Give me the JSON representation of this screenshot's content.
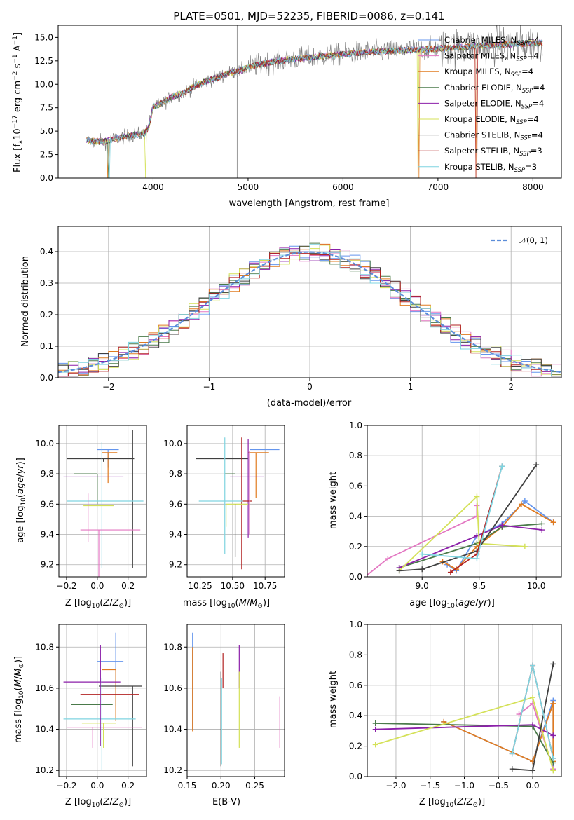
{
  "colors": {
    "Chabrier MILES": "#6495ed",
    "Salpeter MILES": "#e377c2",
    "Kroupa MILES": "#e07b20",
    "Chabrier ELODIE": "#4a7a4a",
    "Salpeter ELODIE": "#8b1fa9",
    "Kroupa ELODIE": "#d4e157",
    "Chabrier STELIB": "#404040",
    "Salpeter STELIB": "#b22222",
    "Kroupa STELIB": "#7fd4e0",
    "gaussian": "#5b8dd9"
  },
  "chart_data": [
    {
      "id": "spectrum",
      "type": "line",
      "title": "PLATE=0501, MJD=52235, FIBERID=0086, z=0.141",
      "xlabel": "wavelength [Angstrom, rest frame]",
      "ylabel": "Flux [f_λ 10^-17 erg cm^-2 s^-1 A^-1]",
      "xlim": [
        3000,
        8300
      ],
      "ylim": [
        0,
        16.3
      ],
      "xticks": [
        4000,
        5000,
        6000,
        7000,
        8000
      ],
      "yticks": [
        0.0,
        2.5,
        5.0,
        7.5,
        10.0,
        12.5,
        15.0
      ],
      "legend_position": "right",
      "legend": [
        {
          "name": "Chabrier MILES",
          "nssp": "4"
        },
        {
          "name": "Salpeter MILES",
          "nssp": "4"
        },
        {
          "name": "Kroupa MILES",
          "nssp": "4"
        },
        {
          "name": "Chabrier ELODIE",
          "nssp": "4"
        },
        {
          "name": "Salpeter ELODIE",
          "nssp": "4"
        },
        {
          "name": "Kroupa ELODIE",
          "nssp": "4"
        },
        {
          "name": "Chabrier STELIB",
          "nssp": "4"
        },
        {
          "name": "Salpeter STELIB",
          "nssp": "3"
        },
        {
          "name": "Kroupa STELIB",
          "nssp": "3"
        }
      ],
      "continuum": {
        "x": [
          3300,
          3400,
          3500,
          3600,
          3700,
          3800,
          3900,
          3950,
          4000,
          4100,
          4200,
          4300,
          4400,
          4500,
          4600,
          4700,
          4800,
          4900,
          5000,
          5200,
          5400,
          5600,
          5800,
          6000,
          6200,
          6400,
          6600,
          6800,
          7000,
          7200,
          7400,
          7600,
          7800,
          8000,
          8100
        ],
        "y": [
          4.0,
          3.9,
          3.9,
          4.2,
          4.4,
          4.6,
          4.7,
          5.3,
          7.6,
          8.0,
          8.7,
          9.0,
          9.6,
          10.1,
          10.5,
          10.8,
          11.2,
          11.4,
          11.8,
          12.3,
          12.6,
          12.8,
          13.0,
          13.2,
          13.4,
          13.5,
          13.6,
          13.7,
          13.8,
          13.9,
          14.1,
          14.2,
          14.3,
          14.4,
          14.4
        ]
      }
    },
    {
      "id": "residuals",
      "type": "step",
      "xlabel": "(data-model)/error",
      "ylabel": "Normed distribution",
      "xlim": [
        -2.5,
        2.5
      ],
      "ylim": [
        0,
        0.48
      ],
      "xticks": [
        -2,
        -1,
        0,
        1,
        2
      ],
      "yticks": [
        0.0,
        0.1,
        0.2,
        0.3,
        0.4
      ],
      "grid": true,
      "legend_position": "top-right",
      "gaussian_label": "𝒩(0, 1)",
      "bins": {
        "start": -2.5,
        "width": 0.1,
        "count": 50
      }
    },
    {
      "id": "age-vs-Z",
      "type": "errorbar",
      "xlabel": "Z [log10(Z/Z⊙)]",
      "ylabel": "age [log10(age/yr)]",
      "xlim": [
        -0.25,
        0.32
      ],
      "ylim": [
        9.12,
        10.12
      ],
      "xticks": [
        -0.2,
        0.0,
        0.2
      ],
      "yticks": [
        9.2,
        9.4,
        9.6,
        9.8,
        10.0
      ],
      "grid": true,
      "points": [
        {
          "model": "Chabrier MILES",
          "x": 0.07,
          "y": 9.96,
          "xerr": [
            0.07,
            0.07
          ],
          "yerr": [
            0.12,
            0.0
          ]
        },
        {
          "model": "Kroupa MILES",
          "x": 0.07,
          "y": 9.94,
          "xerr": [
            0.04,
            0.06
          ],
          "yerr": [
            0.2,
            0.0
          ]
        },
        {
          "model": "Chabrier STELIB",
          "x": 0.04,
          "y": 9.9,
          "xerr": [
            0.24,
            0.2
          ],
          "yerr": [
            0.02,
            0.0
          ]
        },
        {
          "model": "Chabrier STELIB",
          "x": 0.23,
          "y": 9.6,
          "xerr": [
            0.0,
            0.0
          ],
          "yerr": [
            0.42,
            0.49
          ]
        },
        {
          "model": "Chabrier ELODIE",
          "x": 0.0,
          "y": 9.8,
          "xerr": [
            0.15,
            0.0
          ],
          "yerr": [
            0.2,
            0.0
          ]
        },
        {
          "model": "Salpeter ELODIE",
          "x": 0.0,
          "y": 9.78,
          "xerr": [
            0.22,
            0.17
          ],
          "yerr": [
            0.0,
            0.0
          ]
        },
        {
          "model": "Kroupa STELIB",
          "x": 0.03,
          "y": 9.62,
          "xerr": [
            0.23,
            0.27
          ],
          "yerr": [
            0.44,
            0.39
          ]
        },
        {
          "model": "Kroupa ELODIE",
          "x": 0.02,
          "y": 9.59,
          "xerr": [
            0.11,
            0.09
          ],
          "yerr": [
            0.0,
            0.0
          ]
        },
        {
          "model": "Salpeter MILES",
          "x": 0.01,
          "y": 9.43,
          "xerr": [
            0.12,
            0.27
          ],
          "yerr": [
            0.5,
            0.0
          ]
        },
        {
          "model": "Salpeter MILES",
          "x": -0.06,
          "y": 9.55,
          "xerr": [
            0.0,
            0.0
          ],
          "yerr": [
            0.2,
            0.12
          ]
        },
        {
          "model": "Salpeter STELIB",
          "x": 0.0,
          "y": 9.62,
          "xerr": [
            0.0,
            0.0
          ],
          "yerr": [
            0.0,
            0.0
          ]
        }
      ]
    },
    {
      "id": "age-vs-mass",
      "type": "errorbar",
      "xlabel": "mass [log10(M/M⊙)]",
      "ylabel": "",
      "xlim": [
        10.15,
        10.9
      ],
      "ylim": [
        9.12,
        10.12
      ],
      "xticks": [
        10.25,
        10.5,
        10.75
      ],
      "yticks": [
        9.2,
        9.4,
        9.6,
        9.8,
        10.0
      ],
      "grid": true,
      "points": [
        {
          "model": "Chabrier MILES",
          "x": 10.73,
          "y": 9.96,
          "xerr": [
            0.1,
            0.13
          ],
          "yerr": [
            0.0,
            0.0
          ]
        },
        {
          "model": "Kroupa MILES",
          "x": 10.68,
          "y": 9.94,
          "xerr": [
            0.06,
            0.1
          ],
          "yerr": [
            0.3,
            0.0
          ]
        },
        {
          "model": "Chabrier STELIB",
          "x": 10.4,
          "y": 9.9,
          "xerr": [
            0.18,
            0.22
          ],
          "yerr": [
            0.0,
            0.0
          ]
        },
        {
          "model": "Chabrier ELODIE",
          "x": 10.52,
          "y": 9.8,
          "xerr": [
            0.08,
            0.0
          ],
          "yerr": [
            0.0,
            0.0
          ]
        },
        {
          "model": "Salpeter ELODIE",
          "x": 10.62,
          "y": 9.78,
          "xerr": [
            0.14,
            0.12
          ],
          "yerr": [
            0.4,
            0.25
          ]
        },
        {
          "model": "Salpeter STELIB",
          "x": 10.57,
          "y": 9.62,
          "xerr": [
            0.0,
            0.08
          ],
          "yerr": [
            0.45,
            0.42
          ]
        },
        {
          "model": "Kroupa STELIB",
          "x": 10.44,
          "y": 9.62,
          "xerr": [
            0.2,
            0.14
          ],
          "yerr": [
            0.35,
            0.42
          ]
        },
        {
          "model": "Kroupa ELODIE",
          "x": 10.45,
          "y": 9.6,
          "xerr": [
            0.0,
            0.17
          ],
          "yerr": [
            0.15,
            0.0
          ]
        },
        {
          "model": "Chabrier STELIB",
          "x": 10.52,
          "y": 9.6,
          "xerr": [
            0.0,
            0.0
          ],
          "yerr": [
            0.35,
            0.0
          ]
        },
        {
          "model": "Salpeter MILES",
          "x": 10.63,
          "y": 9.6,
          "xerr": [
            0.0,
            0.0
          ],
          "yerr": [
            0.2,
            0.35
          ]
        }
      ]
    },
    {
      "id": "massweight-vs-age",
      "type": "line",
      "xlabel": "age [log10(age/yr)]",
      "ylabel": "mass weight",
      "xlim": [
        8.52,
        10.22
      ],
      "ylim": [
        0,
        1.0
      ],
      "xticks": [
        9.0,
        9.5,
        10.0
      ],
      "yticks": [
        0.0,
        0.2,
        0.4,
        0.6,
        0.8,
        1.0
      ],
      "grid": true,
      "series": [
        {
          "model": "Chabrier MILES",
          "x": [
            9.22,
            9.3,
            9.48,
            9.7,
            9.9,
            10.15
          ],
          "y": [
            0.08,
            0.04,
            0.27,
            0.35,
            0.5,
            0.36
          ]
        },
        {
          "model": "Salpeter MILES",
          "x": [
            8.5,
            8.7,
            9.48,
            9.48
          ],
          "y": [
            0.0,
            0.12,
            0.4,
            0.47
          ]
        },
        {
          "model": "Kroupa MILES",
          "x": [
            9.18,
            9.3,
            9.48,
            9.7,
            9.87,
            10.15
          ],
          "y": [
            0.1,
            0.05,
            0.2,
            0.33,
            0.48,
            0.36
          ]
        },
        {
          "model": "Chabrier ELODIE",
          "x": [
            8.8,
            9.48,
            9.7,
            10.05
          ],
          "y": [
            0.06,
            0.22,
            0.33,
            0.35
          ]
        },
        {
          "model": "Salpeter ELODIE",
          "x": [
            8.8,
            9.48,
            9.7,
            10.05
          ],
          "y": [
            0.06,
            0.27,
            0.34,
            0.31
          ]
        },
        {
          "model": "Kroupa ELODIE",
          "x": [
            8.8,
            9.48,
            9.5,
            9.9
          ],
          "y": [
            0.04,
            0.53,
            0.22,
            0.2
          ]
        },
        {
          "model": "Chabrier STELIB",
          "x": [
            8.8,
            9.0,
            9.48,
            10.0
          ],
          "y": [
            0.04,
            0.05,
            0.17,
            0.74
          ]
        },
        {
          "model": "Salpeter STELIB",
          "x": [
            9.25,
            9.48,
            9.7
          ],
          "y": [
            0.03,
            0.15,
            0.73
          ]
        },
        {
          "model": "Kroupa STELIB",
          "x": [
            9.0,
            9.48,
            9.7
          ],
          "y": [
            0.15,
            0.12,
            0.73
          ]
        }
      ]
    },
    {
      "id": "mass-vs-Z",
      "type": "errorbar",
      "xlabel": "Z [log10(Z/Z⊙)]",
      "ylabel": "mass [log10(M/M⊙)]",
      "xlim": [
        -0.25,
        0.32
      ],
      "ylim": [
        10.17,
        10.91
      ],
      "xticks": [
        -0.2,
        0.0,
        0.2
      ],
      "yticks": [
        10.2,
        10.4,
        10.6,
        10.8
      ],
      "grid": true,
      "points": [
        {
          "model": "Chabrier MILES",
          "x": 0.12,
          "y": 10.73,
          "xerr": [
            0.12,
            0.05
          ],
          "yerr": [
            0.22,
            0.14
          ]
        },
        {
          "model": "Kroupa MILES",
          "x": 0.12,
          "y": 10.69,
          "xerr": [
            0.09,
            0.0
          ],
          "yerr": [
            0.25,
            0.0
          ]
        },
        {
          "model": "Chabrier STELIB",
          "x": 0.23,
          "y": 10.61,
          "xerr": [
            0.22,
            0.06
          ],
          "yerr": [
            0.39,
            0.0
          ]
        },
        {
          "model": "Salpeter ELODIE",
          "x": 0.02,
          "y": 10.63,
          "xerr": [
            0.24,
            0.13
          ],
          "yerr": [
            0.0,
            0.18
          ]
        },
        {
          "model": "Salpeter STELIB",
          "x": 0.02,
          "y": 10.57,
          "xerr": [
            0.13,
            0.25
          ],
          "yerr": [
            0.0,
            0.0
          ]
        },
        {
          "model": "Chabrier ELODIE",
          "x": 0.0,
          "y": 10.52,
          "xerr": [
            0.17,
            0.1
          ],
          "yerr": [
            0.0,
            0.0
          ]
        },
        {
          "model": "Kroupa STELIB",
          "x": 0.03,
          "y": 10.45,
          "xerr": [
            0.25,
            0.22
          ],
          "yerr": [
            0.25,
            0.2
          ]
        },
        {
          "model": "Kroupa ELODIE",
          "x": 0.04,
          "y": 10.43,
          "xerr": [
            0.14,
            0.08
          ],
          "yerr": [
            0.12,
            0.0
          ]
        },
        {
          "model": "Salpeter MILES",
          "x": -0.03,
          "y": 10.41,
          "xerr": [
            0.17,
            0.32
          ],
          "yerr": [
            0.1,
            0.0
          ]
        },
        {
          "model": "Salpeter ELODIE",
          "x": 0.02,
          "y": 10.45,
          "xerr": [
            0.0,
            0.0
          ],
          "yerr": [
            0.13,
            0.36
          ]
        }
      ]
    },
    {
      "id": "mass-vs-EBV",
      "type": "errorbar",
      "xlabel": "E(B-V)",
      "ylabel": "",
      "xlim": [
        0.15,
        0.294
      ],
      "ylim": [
        10.17,
        10.91
      ],
      "xticks": [
        0.15,
        0.2,
        0.25
      ],
      "yticks": [
        10.2,
        10.4,
        10.6,
        10.8
      ],
      "grid": true,
      "points": [
        {
          "model": "Chabrier MILES",
          "x": 0.158,
          "y": 10.6,
          "xerr": [
            0.0,
            0.0
          ],
          "yerr": [
            0.2,
            0.27
          ]
        },
        {
          "model": "Kroupa MILES",
          "x": 0.158,
          "y": 10.6,
          "xerr": [
            0.0,
            0.0
          ],
          "yerr": [
            0.21,
            0.2
          ]
        },
        {
          "model": "Chabrier STELIB",
          "x": 0.2,
          "y": 10.45,
          "xerr": [
            0.0,
            0.0
          ],
          "yerr": [
            0.23,
            0.23
          ]
        },
        {
          "model": "Salpeter STELIB",
          "x": 0.203,
          "y": 10.6,
          "xerr": [
            0.0,
            0.0
          ],
          "yerr": [
            0.0,
            0.17
          ]
        },
        {
          "model": "Kroupa STELIB",
          "x": 0.201,
          "y": 10.45,
          "xerr": [
            0.0,
            0.0
          ],
          "yerr": [
            0.22,
            0.2
          ]
        },
        {
          "model": "Salpeter ELODIE",
          "x": 0.227,
          "y": 10.6,
          "xerr": [
            0.0,
            0.0
          ],
          "yerr": [
            0.0,
            0.21
          ]
        },
        {
          "model": "Kroupa ELODIE",
          "x": 0.227,
          "y": 10.5,
          "xerr": [
            0.0,
            0.0
          ],
          "yerr": [
            0.19,
            0.18
          ]
        },
        {
          "model": "Salpeter MILES",
          "x": 0.287,
          "y": 10.43,
          "xerr": [
            0.0,
            0.0
          ],
          "yerr": [
            0.12,
            0.13
          ]
        }
      ]
    },
    {
      "id": "massweight-vs-Z",
      "type": "line",
      "xlabel": "Z [log10(Z/Z⊙)]",
      "ylabel": "mass weight",
      "xlim": [
        -2.42,
        0.42
      ],
      "ylim": [
        0,
        1.0
      ],
      "xticks": [
        -2.0,
        -1.5,
        -1.0,
        -0.5,
        0.0
      ],
      "yticks": [
        0.0,
        0.2,
        0.4,
        0.6,
        0.8,
        1.0
      ],
      "grid": true,
      "series": [
        {
          "model": "Chabrier MILES",
          "x": [
            -1.3,
            0.0,
            0.3,
            0.3
          ],
          "y": [
            0.36,
            0.1,
            0.5,
            0.05
          ]
        },
        {
          "model": "Salpeter MILES",
          "x": [
            -0.2,
            0.0,
            0.3
          ],
          "y": [
            0.41,
            0.48,
            0.05
          ]
        },
        {
          "model": "Kroupa MILES",
          "x": [
            -1.3,
            0.0,
            0.3,
            0.3
          ],
          "y": [
            0.36,
            0.1,
            0.48,
            0.1
          ]
        },
        {
          "model": "Chabrier ELODIE",
          "x": [
            -2.3,
            0.0,
            0.3
          ],
          "y": [
            0.35,
            0.33,
            0.09
          ]
        },
        {
          "model": "Salpeter ELODIE",
          "x": [
            -2.3,
            0.0,
            0.3
          ],
          "y": [
            0.31,
            0.34,
            0.27
          ]
        },
        {
          "model": "Kroupa ELODIE",
          "x": [
            -2.3,
            0.0,
            0.3
          ],
          "y": [
            0.21,
            0.52,
            0.04
          ]
        },
        {
          "model": "Chabrier STELIB",
          "x": [
            -0.3,
            0.0,
            0.3
          ],
          "y": [
            0.05,
            0.04,
            0.74
          ]
        },
        {
          "model": "Salpeter STELIB",
          "x": [
            -0.3,
            0.0,
            0.3
          ],
          "y": [
            0.15,
            0.73,
            0.12
          ]
        },
        {
          "model": "Kroupa STELIB",
          "x": [
            -0.3,
            0.0,
            0.3
          ],
          "y": [
            0.15,
            0.73,
            0.12
          ]
        }
      ]
    }
  ]
}
